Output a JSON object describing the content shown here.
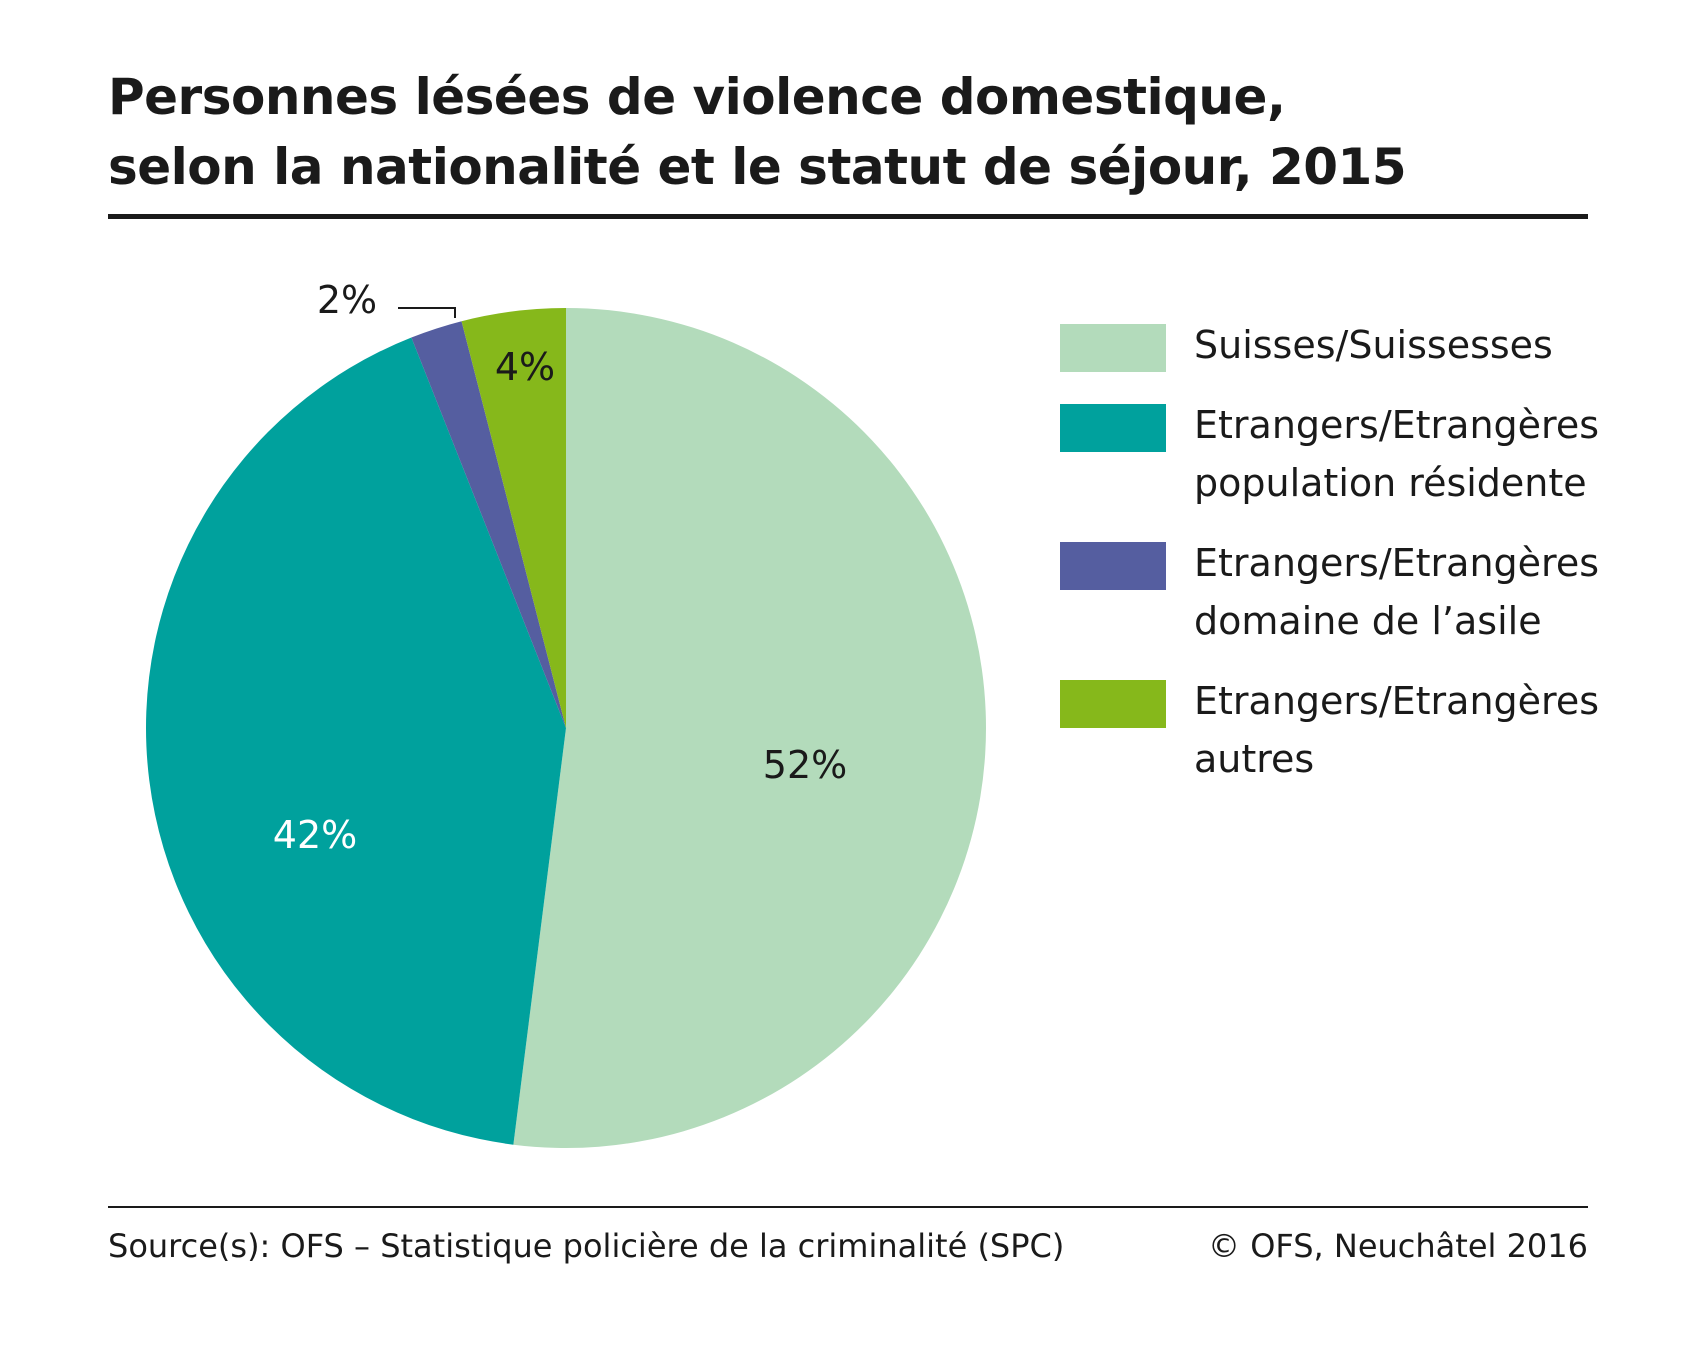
{
  "title": {
    "line1": "Personnes lésées de violence domestique,",
    "line2": "selon la nationalité et le statut de séjour, 2015"
  },
  "chart_data": {
    "type": "pie",
    "start_angle": "12 o'clock, clockwise",
    "slices": [
      {
        "name": "Suisses/Suissesses",
        "value": 52,
        "label": "52%",
        "color": "#b3dbbb",
        "label_color": "#1a1a1a"
      },
      {
        "name": "Etrangers/Etrangères population résidente",
        "value": 42,
        "label": "42%",
        "color": "#00a19d",
        "label_color": "#ffffff"
      },
      {
        "name": "Etrangers/Etrangères domaine de l'asile",
        "value": 2,
        "label": "2%",
        "color": "#555ea0",
        "label_color": "#1a1a1a"
      },
      {
        "name": "Etrangers/Etrangères autres",
        "value": 4,
        "label": "4%",
        "color": "#86b81b",
        "label_color": "#1a1a1a"
      }
    ],
    "legend_position": "right"
  },
  "legend": [
    {
      "line1": "Suisses/Suissesses",
      "line2": "",
      "color": "#b3dbbb"
    },
    {
      "line1": "Etrangers/Etrangères",
      "line2": "population résidente",
      "color": "#00a19d"
    },
    {
      "line1": "Etrangers/Etrangères",
      "line2": "domaine de l’asile",
      "color": "#555ea0"
    },
    {
      "line1": "Etrangers/Etrangères",
      "line2": "autres",
      "color": "#86b81b"
    }
  ],
  "footer": {
    "source": "Source(s): OFS – Statistique policière de la criminalité (SPC)",
    "copyright": "© OFS, Neuchâtel 2016"
  }
}
